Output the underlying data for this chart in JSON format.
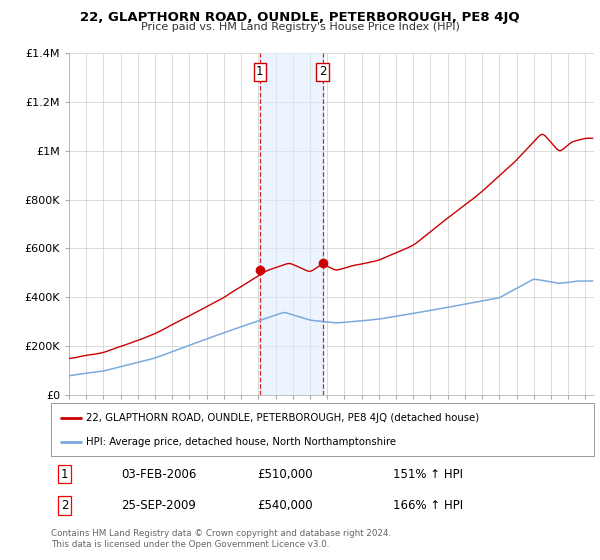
{
  "title": "22, GLAPTHORN ROAD, OUNDLE, PETERBOROUGH, PE8 4JQ",
  "subtitle": "Price paid vs. HM Land Registry's House Price Index (HPI)",
  "ylim": [
    0,
    1400000
  ],
  "xlim_start": 1995.0,
  "xlim_end": 2025.5,
  "yticks": [
    0,
    200000,
    400000,
    600000,
    800000,
    1000000,
    1200000,
    1400000
  ],
  "ytick_labels": [
    "£0",
    "£200K",
    "£400K",
    "£600K",
    "£800K",
    "£1M",
    "£1.2M",
    "£1.4M"
  ],
  "xticks": [
    1995,
    1996,
    1997,
    1998,
    1999,
    2000,
    2001,
    2002,
    2003,
    2004,
    2005,
    2006,
    2007,
    2008,
    2009,
    2010,
    2011,
    2012,
    2013,
    2014,
    2015,
    2016,
    2017,
    2018,
    2019,
    2020,
    2021,
    2022,
    2023,
    2024,
    2025
  ],
  "transaction1_date": 2006.08,
  "transaction1_price": 510000,
  "transaction2_date": 2009.73,
  "transaction2_price": 540000,
  "shade_color": "#ddeeff",
  "shade_alpha": 0.55,
  "red_color": "#cc0000",
  "blue_color": "#7aaadd",
  "legend_label1": "22, GLAPTHORN ROAD, OUNDLE, PETERBOROUGH, PE8 4JQ (detached house)",
  "legend_label2": "HPI: Average price, detached house, North Northamptonshire",
  "footnote": "Contains HM Land Registry data © Crown copyright and database right 2024.\nThis data is licensed under the Open Government Licence v3.0.",
  "transaction_table": [
    [
      "1",
      "03-FEB-2006",
      "£510,000",
      "151% ↑ HPI"
    ],
    [
      "2",
      "25-SEP-2009",
      "£540,000",
      "166% ↑ HPI"
    ]
  ],
  "bg_color": "#ffffff",
  "grid_color": "#cccccc"
}
